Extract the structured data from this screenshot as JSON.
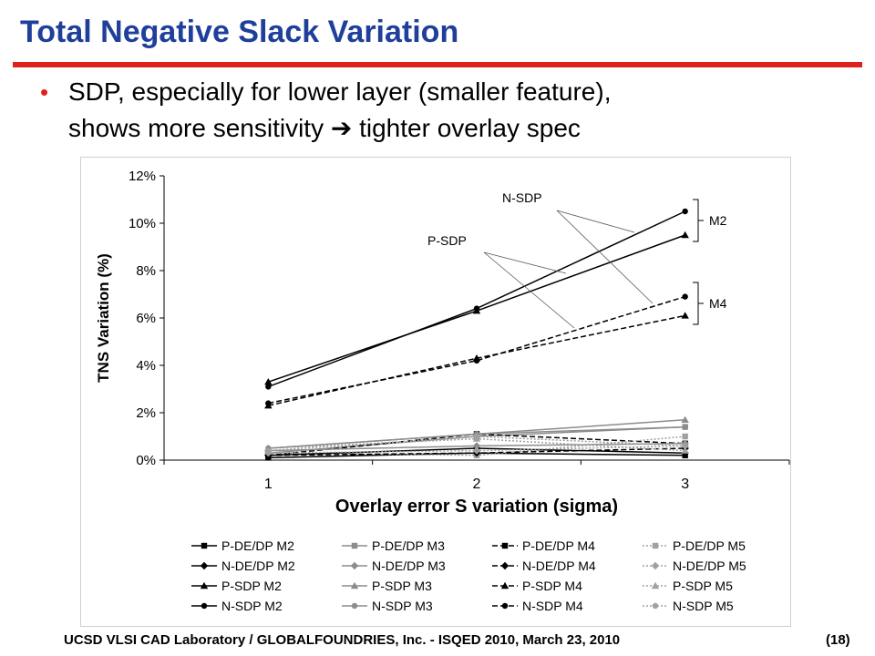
{
  "slide": {
    "title": "Total Negative Slack Variation",
    "bullet_line1": "SDP, especially for lower layer (smaller feature),",
    "bullet_line2": "shows more sensitivity ➔ tighter overlay spec",
    "footer": "UCSD VLSI CAD Laboratory /   GLOBALFOUNDRIES, Inc.   - ISQED 2010,   March 23, 2010",
    "page_number": "(18)"
  },
  "chart_data": {
    "type": "line",
    "title": "",
    "xlabel": "Overlay error S variation (sigma)",
    "ylabel": "TNS Variation (%)",
    "x": [
      1,
      2,
      3
    ],
    "ylim": [
      0,
      12
    ],
    "yticks": [
      "0%",
      "2%",
      "4%",
      "6%",
      "8%",
      "10%",
      "12%"
    ],
    "grid": false,
    "legend_position": "bottom",
    "series": [
      {
        "name": "P-DE/DP M2",
        "values": [
          0.1,
          0.3,
          0.2
        ],
        "color": "#000000",
        "dash": "solid",
        "marker": "square"
      },
      {
        "name": "P-DE/DP M3",
        "values": [
          0.3,
          1.0,
          1.4
        ],
        "color": "#8c8c8c",
        "dash": "solid",
        "marker": "square"
      },
      {
        "name": "P-DE/DP M4",
        "values": [
          0.2,
          1.1,
          0.7
        ],
        "color": "#000000",
        "dash": "dashed",
        "marker": "square"
      },
      {
        "name": "P-DE/DP M5",
        "values": [
          0.3,
          0.2,
          1.0
        ],
        "color": "#a0a0a0",
        "dash": "dotted",
        "marker": "square"
      },
      {
        "name": "N-DE/DP M2",
        "values": [
          0.2,
          0.5,
          0.3
        ],
        "color": "#000000",
        "dash": "solid",
        "marker": "diamond"
      },
      {
        "name": "N-DE/DP M3",
        "values": [
          0.4,
          0.6,
          0.7
        ],
        "color": "#8c8c8c",
        "dash": "solid",
        "marker": "diamond"
      },
      {
        "name": "N-DE/DP M4",
        "values": [
          0.2,
          0.3,
          0.5
        ],
        "color": "#000000",
        "dash": "dashed",
        "marker": "diamond"
      },
      {
        "name": "N-DE/DP M5",
        "values": [
          0.3,
          0.4,
          0.6
        ],
        "color": "#a0a0a0",
        "dash": "dotted",
        "marker": "diamond"
      },
      {
        "name": "P-SDP M2",
        "values": [
          3.3,
          6.3,
          9.5
        ],
        "color": "#000000",
        "dash": "solid",
        "marker": "triangle"
      },
      {
        "name": "P-SDP M3",
        "values": [
          0.5,
          1.1,
          1.7
        ],
        "color": "#8c8c8c",
        "dash": "solid",
        "marker": "triangle"
      },
      {
        "name": "P-SDP M4",
        "values": [
          2.3,
          4.3,
          6.1
        ],
        "color": "#000000",
        "dash": "dashed",
        "marker": "triangle"
      },
      {
        "name": "P-SDP M5",
        "values": [
          0.5,
          0.9,
          0.4
        ],
        "color": "#a0a0a0",
        "dash": "dotted",
        "marker": "triangle"
      },
      {
        "name": "N-SDP M2",
        "values": [
          3.1,
          6.4,
          10.5
        ],
        "color": "#000000",
        "dash": "solid",
        "marker": "circle"
      },
      {
        "name": "N-SDP M3",
        "values": [
          0.5,
          1.1,
          1.4
        ],
        "color": "#8c8c8c",
        "dash": "solid",
        "marker": "circle"
      },
      {
        "name": "N-SDP M4",
        "values": [
          2.4,
          4.2,
          6.9
        ],
        "color": "#000000",
        "dash": "dashed",
        "marker": "circle"
      },
      {
        "name": "N-SDP M5",
        "values": [
          0.4,
          1.0,
          0.6
        ],
        "color": "#a0a0a0",
        "dash": "dotted",
        "marker": "circle"
      }
    ],
    "annotations": {
      "n_sdp": "N-SDP",
      "p_sdp": "P-SDP",
      "m2": "M2",
      "m4": "M4"
    }
  }
}
